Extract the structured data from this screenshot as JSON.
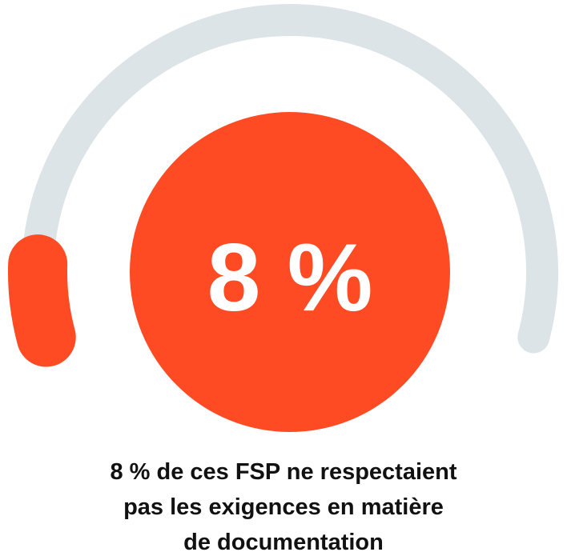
{
  "chart_data": {
    "type": "gauge",
    "value_percent": 8,
    "value_label": "8 %",
    "caption_lines": [
      "8 % de ces FSP ne respectaient",
      "pas les exigences en matière",
      "de documentation"
    ],
    "colors": {
      "accent": "#FF4B23",
      "track": "#DDE4E8",
      "value_text": "#FFFFFF",
      "caption_text": "#111111"
    }
  }
}
